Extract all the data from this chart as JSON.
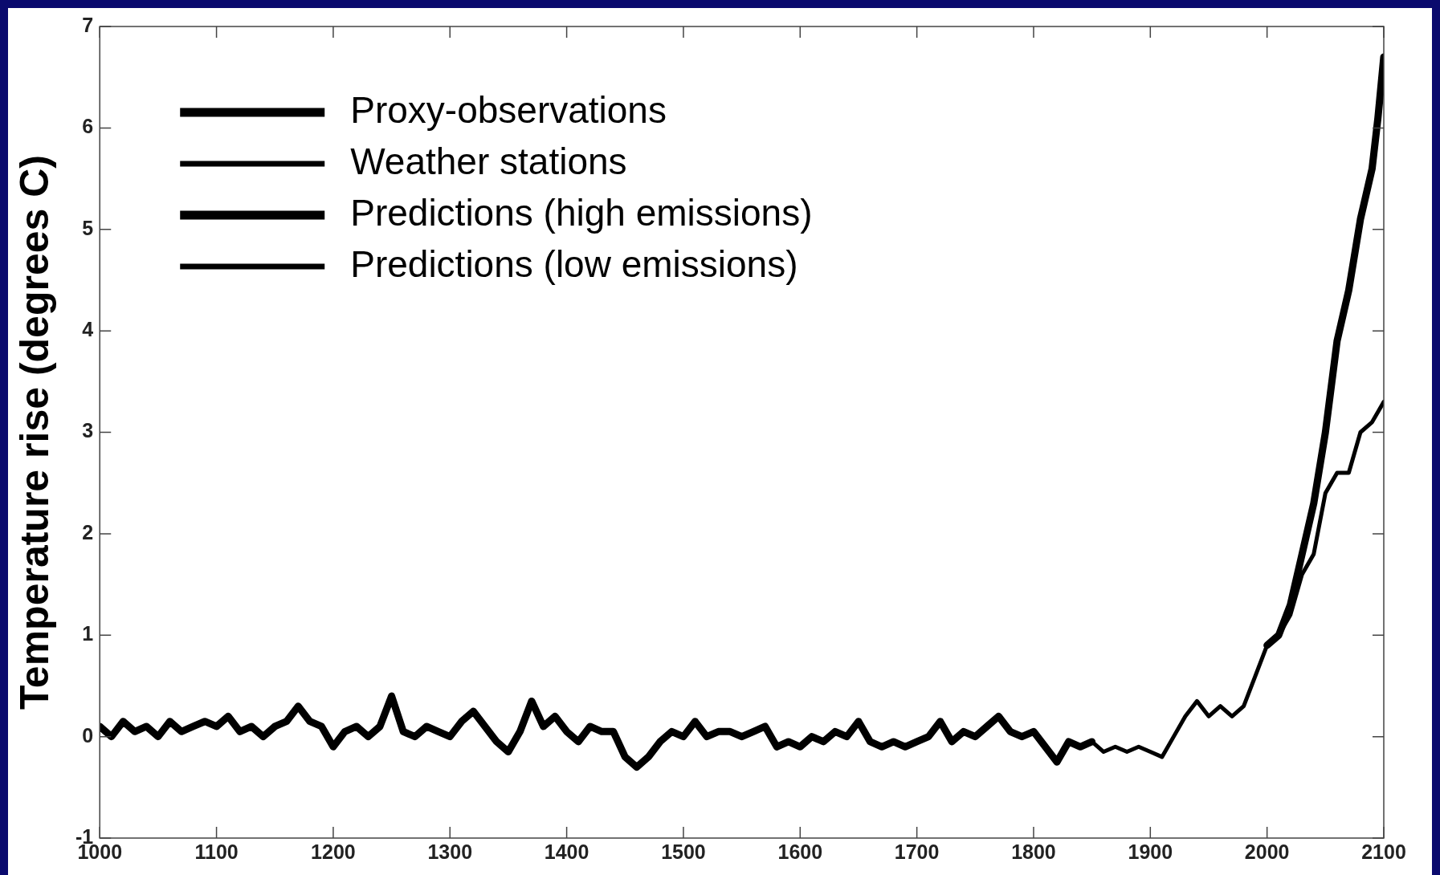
{
  "chart_data": {
    "type": "line",
    "ylabel": "Temperature rise (degrees C)",
    "xlim": [
      1000,
      2100
    ],
    "xticks": [
      1000,
      1100,
      1200,
      1300,
      1400,
      1500,
      1600,
      1700,
      1800,
      1900,
      2000,
      2100
    ],
    "ylim": [
      -1,
      7
    ],
    "yticks": [
      -1,
      0,
      1,
      2,
      3,
      4,
      5,
      6,
      7
    ],
    "legend": "top left",
    "marker": "none",
    "line_style": "solid",
    "series": [
      {
        "name": "Proxy-observations",
        "color": "#000000",
        "x": [
          1000,
          1010,
          1020,
          1030,
          1040,
          1050,
          1060,
          1070,
          1080,
          1090,
          1100,
          1110,
          1120,
          1130,
          1140,
          1150,
          1160,
          1170,
          1180,
          1190,
          1200,
          1210,
          1220,
          1230,
          1240,
          1250,
          1260,
          1270,
          1280,
          1290,
          1300,
          1310,
          1320,
          1330,
          1340,
          1350,
          1360,
          1370,
          1380,
          1390,
          1400,
          1410,
          1420,
          1430,
          1440,
          1450,
          1460,
          1470,
          1480,
          1490,
          1500,
          1510,
          1520,
          1530,
          1540,
          1550,
          1560,
          1570,
          1580,
          1590,
          1600,
          1610,
          1620,
          1630,
          1640,
          1650,
          1660,
          1670,
          1680,
          1690,
          1700,
          1710,
          1720,
          1730,
          1740,
          1750,
          1760,
          1770,
          1780,
          1790,
          1800,
          1810,
          1820,
          1830,
          1840,
          1850
        ],
        "values": [
          0.1,
          0.0,
          0.15,
          0.05,
          0.1,
          0.0,
          0.15,
          0.05,
          0.1,
          0.15,
          0.1,
          0.2,
          0.05,
          0.1,
          0.0,
          0.1,
          0.15,
          0.3,
          0.15,
          0.1,
          -0.1,
          0.05,
          0.1,
          0.0,
          0.1,
          0.4,
          0.05,
          0.0,
          0.1,
          0.05,
          0.0,
          0.15,
          0.25,
          0.1,
          -0.05,
          -0.15,
          0.05,
          0.35,
          0.1,
          0.2,
          0.05,
          -0.05,
          0.1,
          0.05,
          0.05,
          -0.2,
          -0.3,
          -0.2,
          -0.05,
          0.05,
          0.0,
          0.15,
          0.0,
          0.05,
          0.05,
          0.0,
          0.05,
          0.1,
          -0.1,
          -0.05,
          -0.1,
          0.0,
          -0.05,
          0.05,
          0.0,
          0.15,
          -0.05,
          -0.1,
          -0.05,
          -0.1,
          -0.05,
          0.0,
          0.15,
          -0.05,
          0.05,
          0.0,
          0.1,
          0.2,
          0.05,
          0.0,
          0.05,
          -0.1,
          -0.25,
          -0.05,
          -0.1,
          -0.05
        ]
      },
      {
        "name": "Weather stations",
        "color": "#000000",
        "x": [
          1850,
          1860,
          1870,
          1880,
          1890,
          1900,
          1910,
          1920,
          1930,
          1940,
          1950,
          1960,
          1970,
          1980,
          1990,
          2000
        ],
        "values": [
          -0.05,
          -0.15,
          -0.1,
          -0.15,
          -0.1,
          -0.15,
          -0.2,
          0.0,
          0.2,
          0.35,
          0.2,
          0.3,
          0.2,
          0.3,
          0.6,
          0.9
        ]
      },
      {
        "name": "Predictions (high emissions)",
        "color": "#000000",
        "x": [
          2000,
          2010,
          2020,
          2030,
          2040,
          2050,
          2060,
          2070,
          2080,
          2090,
          2095,
          2100
        ],
        "values": [
          0.9,
          1.0,
          1.3,
          1.8,
          2.3,
          3.0,
          3.9,
          4.4,
          5.1,
          5.6,
          6.1,
          6.7
        ]
      },
      {
        "name": "Predictions (low emissions)",
        "color": "#000000",
        "x": [
          2000,
          2010,
          2020,
          2030,
          2040,
          2050,
          2060,
          2070,
          2080,
          2090,
          2100
        ],
        "values": [
          0.9,
          1.0,
          1.2,
          1.6,
          1.8,
          2.4,
          2.6,
          2.6,
          3.0,
          3.1,
          3.3
        ]
      }
    ]
  }
}
